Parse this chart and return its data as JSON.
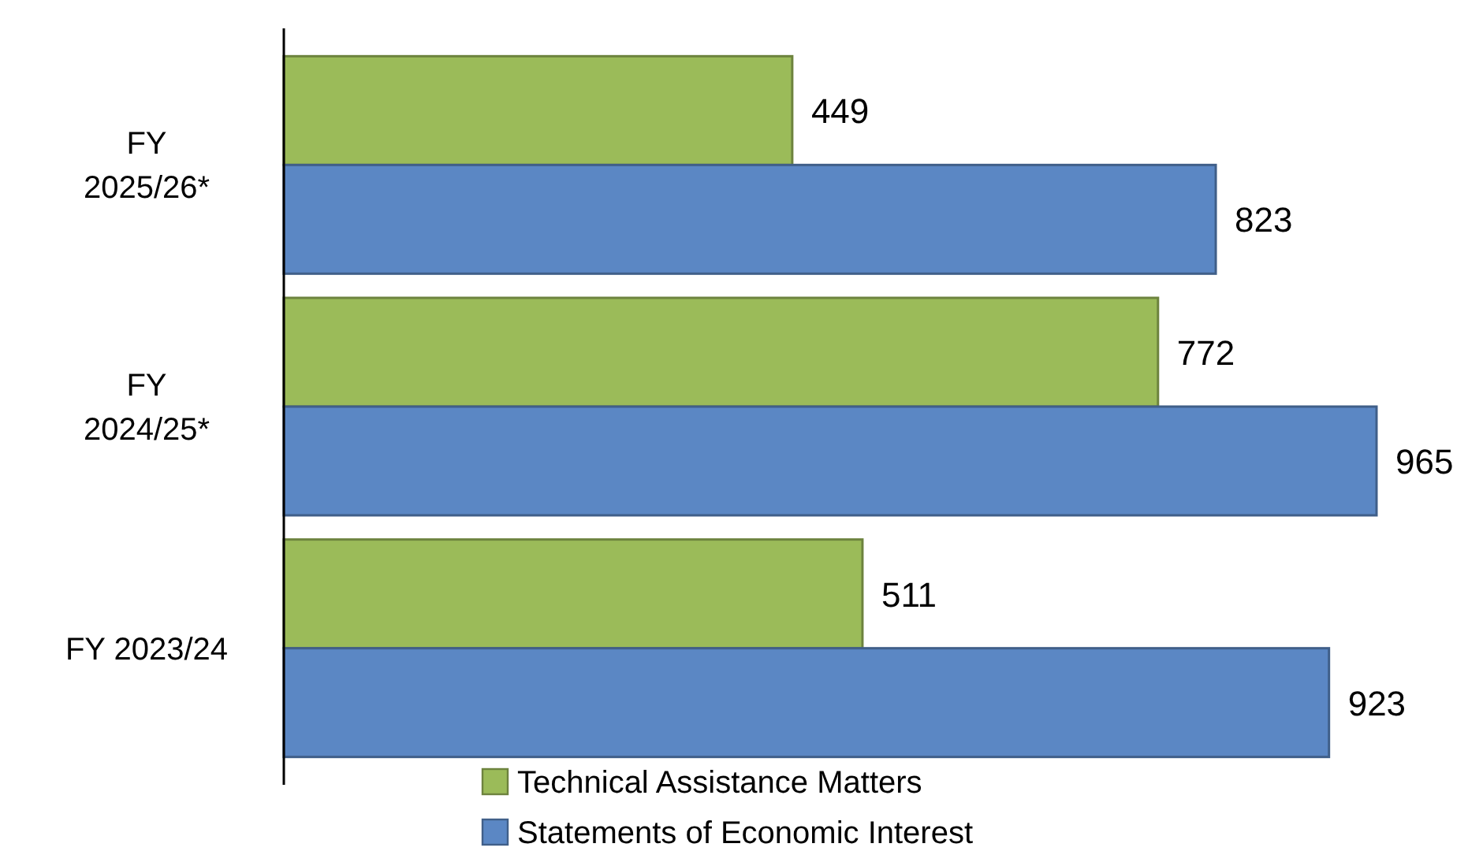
{
  "chart_data": {
    "type": "bar",
    "orientation": "horizontal",
    "categories": [
      "FY 2025/26*",
      "FY 2024/25*",
      "FY 2023/24"
    ],
    "series": [
      {
        "name": "Technical Assistance Matters",
        "color": "#9bbb59",
        "values": [
          449,
          772,
          511
        ]
      },
      {
        "name": "Statements of Economic Interest",
        "color": "#5b87c4",
        "values": [
          823,
          965,
          923
        ]
      }
    ],
    "data_labels": true,
    "legend": "bottom"
  }
}
